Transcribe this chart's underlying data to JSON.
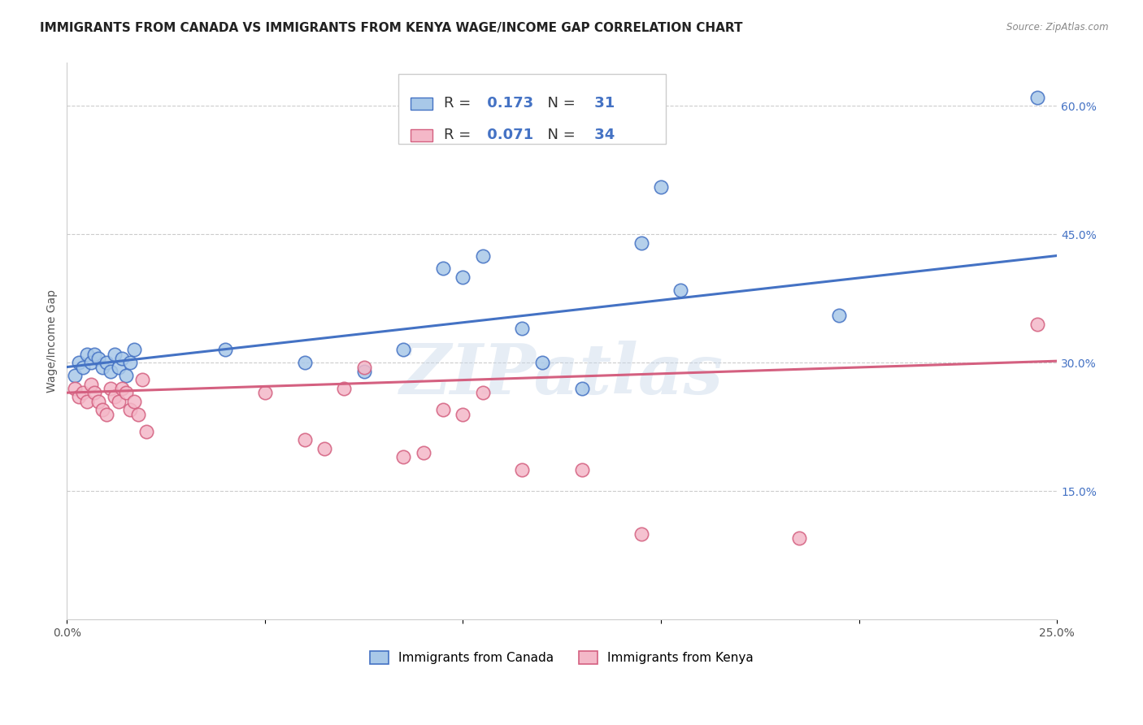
{
  "title": "IMMIGRANTS FROM CANADA VS IMMIGRANTS FROM KENYA WAGE/INCOME GAP CORRELATION CHART",
  "source": "Source: ZipAtlas.com",
  "ylabel": "Wage/Income Gap",
  "xlim": [
    0.0,
    0.25
  ],
  "ylim": [
    0.0,
    0.65
  ],
  "xticks": [
    0.0,
    0.05,
    0.1,
    0.15,
    0.2,
    0.25
  ],
  "xtick_labels": [
    "0.0%",
    "",
    "",
    "",
    "",
    "25.0%"
  ],
  "yticks_right": [
    0.15,
    0.3,
    0.45,
    0.6
  ],
  "ytick_labels_right": [
    "15.0%",
    "30.0%",
    "45.0%",
    "60.0%"
  ],
  "canada_color": "#a8c8e8",
  "canada_edge_color": "#4472c4",
  "kenya_color": "#f4b8c8",
  "kenya_edge_color": "#d46080",
  "trend_canada_color": "#4472c4",
  "trend_kenya_color": "#d46080",
  "legend_R_canada": "0.173",
  "legend_N_canada": "31",
  "legend_R_kenya": "0.071",
  "legend_N_kenya": "34",
  "legend_label_canada": "Immigrants from Canada",
  "legend_label_kenya": "Immigrants from Kenya",
  "watermark": "ZIPatlas",
  "canada_x": [
    0.002,
    0.003,
    0.004,
    0.005,
    0.006,
    0.007,
    0.008,
    0.009,
    0.01,
    0.011,
    0.012,
    0.013,
    0.014,
    0.015,
    0.016,
    0.017,
    0.04,
    0.06,
    0.075,
    0.085,
    0.095,
    0.1,
    0.105,
    0.115,
    0.12,
    0.13,
    0.145,
    0.15,
    0.155,
    0.195,
    0.245
  ],
  "canada_y": [
    0.285,
    0.3,
    0.295,
    0.31,
    0.3,
    0.31,
    0.305,
    0.295,
    0.3,
    0.29,
    0.31,
    0.295,
    0.305,
    0.285,
    0.3,
    0.315,
    0.315,
    0.3,
    0.29,
    0.315,
    0.41,
    0.4,
    0.425,
    0.34,
    0.3,
    0.27,
    0.44,
    0.505,
    0.385,
    0.355,
    0.61
  ],
  "kenya_x": [
    0.002,
    0.003,
    0.004,
    0.005,
    0.006,
    0.007,
    0.008,
    0.009,
    0.01,
    0.011,
    0.012,
    0.013,
    0.014,
    0.015,
    0.016,
    0.017,
    0.018,
    0.019,
    0.02,
    0.05,
    0.06,
    0.065,
    0.07,
    0.075,
    0.085,
    0.09,
    0.095,
    0.1,
    0.105,
    0.115,
    0.13,
    0.145,
    0.185,
    0.245
  ],
  "kenya_y": [
    0.27,
    0.26,
    0.265,
    0.255,
    0.275,
    0.265,
    0.255,
    0.245,
    0.24,
    0.27,
    0.26,
    0.255,
    0.27,
    0.265,
    0.245,
    0.255,
    0.24,
    0.28,
    0.22,
    0.265,
    0.21,
    0.2,
    0.27,
    0.295,
    0.19,
    0.195,
    0.245,
    0.24,
    0.265,
    0.175,
    0.175,
    0.1,
    0.095,
    0.345
  ],
  "trend_canada_x0": 0.0,
  "trend_canada_x1": 0.25,
  "trend_canada_y0": 0.295,
  "trend_canada_y1": 0.425,
  "trend_kenya_x0": 0.0,
  "trend_kenya_x1": 0.25,
  "trend_kenya_y0": 0.265,
  "trend_kenya_y1": 0.302,
  "background_color": "#ffffff",
  "grid_color": "#cccccc",
  "title_fontsize": 11,
  "axis_label_fontsize": 10,
  "tick_fontsize": 10,
  "watermark_fontsize": 62,
  "watermark_color": "#c8d8ea",
  "watermark_alpha": 0.45
}
